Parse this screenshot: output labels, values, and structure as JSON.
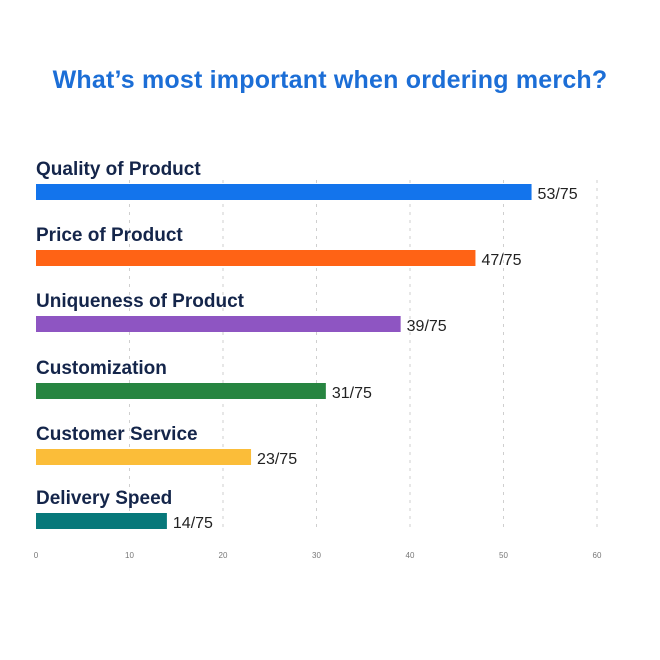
{
  "chart_data": {
    "type": "bar",
    "orientation": "horizontal",
    "title": "What’s most important when ordering merch?",
    "categories": [
      "Quality of Product",
      "Price of Product",
      "Uniqueness of Product",
      "Customization",
      "Customer Service",
      "Delivery Speed"
    ],
    "values": [
      53,
      47,
      39,
      31,
      23,
      14
    ],
    "value_labels": [
      "53/75",
      "47/75",
      "39/75",
      "31/75",
      "23/75",
      "14/75"
    ],
    "colors": [
      "#1374ec",
      "#ff6315",
      "#8e55c2",
      "#278541",
      "#fbbd39",
      "#07787a"
    ],
    "xlim": [
      0,
      60
    ],
    "x_ticks": [
      0,
      10,
      20,
      30,
      40,
      50,
      60
    ],
    "grid": true,
    "xlabel": "",
    "ylabel": ""
  },
  "colors": {
    "title": "#1c6ed6",
    "category_label": "#14254a",
    "grid": "#cfcfcf"
  }
}
